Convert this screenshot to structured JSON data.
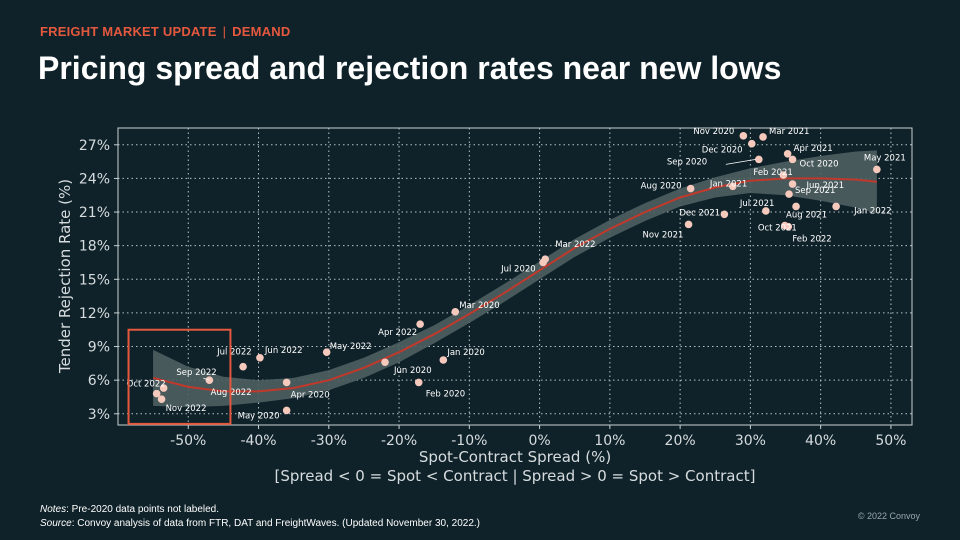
{
  "header": {
    "kicker_left": "FREIGHT MARKET UPDATE",
    "kicker_sep": "|",
    "kicker_right": "DEMAND",
    "title": "Pricing spread and rejection rates near new lows"
  },
  "footer": {
    "notes_label": "Notes",
    "notes_text": ": Pre-2020 data points not labeled.",
    "source_label": "Source",
    "source_text": ": Convoy analysis of data from FTR, DAT and FreightWaves. (Updated November 30, 2022.)",
    "copyright": "© 2022 Convoy"
  },
  "colors": {
    "background": "#0f2229",
    "accent": "#e4583e",
    "point": "#f6c9bd",
    "trend": "#c0392b",
    "band": "#4f5f62",
    "grid": "#b9c3c6"
  },
  "chart_data": {
    "type": "scatter",
    "xlabel": "Spot-Contract Spread (%)",
    "xlabel2": "[Spread < 0 = Spot < Contract | Spread > 0 = Spot > Contract]",
    "ylabel": "Tender Rejection Rate (%)",
    "xlim": [
      -60,
      53
    ],
    "ylim": [
      2,
      28.5
    ],
    "xticks": [
      -50,
      -40,
      -30,
      -20,
      -10,
      0,
      10,
      20,
      30,
      40,
      50
    ],
    "xtick_labels": [
      "-50%",
      "-40%",
      "-30%",
      "-20%",
      "-10%",
      "0%",
      "10%",
      "20%",
      "30%",
      "40%",
      "50%"
    ],
    "yticks": [
      3,
      6,
      9,
      12,
      15,
      18,
      21,
      24,
      27
    ],
    "ytick_labels": [
      "3%",
      "6%",
      "9%",
      "12%",
      "15%",
      "18%",
      "21%",
      "24%",
      "27%"
    ],
    "grid": true,
    "points": [
      {
        "label": "Nov 2020",
        "x": 29,
        "y": 27.8
      },
      {
        "label": "Mar 2021",
        "x": 31.8,
        "y": 27.7
      },
      {
        "label": "Dec 2020",
        "x": 30.2,
        "y": 27.1
      },
      {
        "label": "Apr 2021",
        "x": 35.3,
        "y": 26.2
      },
      {
        "label": "Sep 2020",
        "x": 31.2,
        "y": 25.7
      },
      {
        "label": "Oct 2020",
        "x": 36,
        "y": 25.7
      },
      {
        "label": "Feb 2021",
        "x": 34.7,
        "y": 24.3
      },
      {
        "label": "May 2021",
        "x": 48,
        "y": 24.8
      },
      {
        "label": "Jun 2021",
        "x": 36,
        "y": 23.5
      },
      {
        "label": "Aug 2020",
        "x": 21.5,
        "y": 23.1
      },
      {
        "label": "Jan 2021",
        "x": 27.5,
        "y": 23.3
      },
      {
        "label": "Sep 2021",
        "x": 35.5,
        "y": 22.6
      },
      {
        "label": "Aug 2021",
        "x": 36.5,
        "y": 21.5
      },
      {
        "label": "Jan 2022",
        "x": 42.2,
        "y": 21.5
      },
      {
        "label": "Jul 2021",
        "x": 32.2,
        "y": 21.1
      },
      {
        "label": "Dec 2021",
        "x": 26.3,
        "y": 20.8
      },
      {
        "label": "Oct 2021",
        "x": 34.9,
        "y": 19.8
      },
      {
        "label": "Feb 2022",
        "x": 35.4,
        "y": 19.7
      },
      {
        "label": "Nov 2021",
        "x": 21.2,
        "y": 19.9
      },
      {
        "label": "Mar 2022",
        "x": 0.8,
        "y": 16.8
      },
      {
        "label": "Jul 2020",
        "x": 0.5,
        "y": 16.5
      },
      {
        "label": "Mar 2020",
        "x": -12,
        "y": 12.1
      },
      {
        "label": "Apr 2022",
        "x": -17,
        "y": 11
      },
      {
        "label": "May 2022",
        "x": -30.3,
        "y": 8.5
      },
      {
        "label": "Jun 2022",
        "x": -39.8,
        "y": 8
      },
      {
        "label": "Jul 2022",
        "x": -42.2,
        "y": 7.2
      },
      {
        "label": "Jan 2020",
        "x": -13.7,
        "y": 7.8
      },
      {
        "label": "Jun 2020",
        "x": -22,
        "y": 7.6
      },
      {
        "label": "Feb 2020",
        "x": -17.2,
        "y": 5.8
      },
      {
        "label": "Apr 2020",
        "x": -36,
        "y": 5.8
      },
      {
        "label": "Sep 2022",
        "x": -47,
        "y": 6
      },
      {
        "label": "Aug 2022",
        "x": -53.5,
        "y": 5.3
      },
      {
        "label": "Oct 2022",
        "x": -54.5,
        "y": 4.8
      },
      {
        "label": "Nov 2022",
        "x": -53.8,
        "y": 4.3
      },
      {
        "label": "May 2020",
        "x": -36,
        "y": 3.3
      }
    ],
    "trend": {
      "x": [
        -55,
        -50,
        -45,
        -40,
        -35,
        -30,
        -25,
        -20,
        -15,
        -10,
        -5,
        0,
        5,
        10,
        15,
        20,
        25,
        30,
        35,
        40,
        45,
        48
      ],
      "y": [
        6.2,
        5.4,
        5,
        5,
        5.3,
        6,
        7.1,
        8.5,
        10.1,
        11.9,
        13.8,
        15.8,
        17.8,
        19.5,
        21,
        22.3,
        23.2,
        23.8,
        24,
        24,
        23.9,
        23.7
      ],
      "band_lower": [
        3.7,
        3.6,
        3.7,
        4,
        4.4,
        5.1,
        6.2,
        7.6,
        9.3,
        11.1,
        13,
        15,
        17,
        18.7,
        20.2,
        21.5,
        22.3,
        22.7,
        22.5,
        22,
        21.4,
        20.9
      ],
      "band_upper": [
        8.7,
        7.2,
        6.3,
        6,
        6.2,
        6.9,
        8,
        9.4,
        10.9,
        12.7,
        14.6,
        16.6,
        18.6,
        20.3,
        21.8,
        23.1,
        24.1,
        24.9,
        25.5,
        26,
        26.4,
        26.5
      ]
    },
    "highlight": {
      "x": [
        -58.5,
        -44
      ],
      "y": [
        2.1,
        10.5
      ]
    }
  }
}
